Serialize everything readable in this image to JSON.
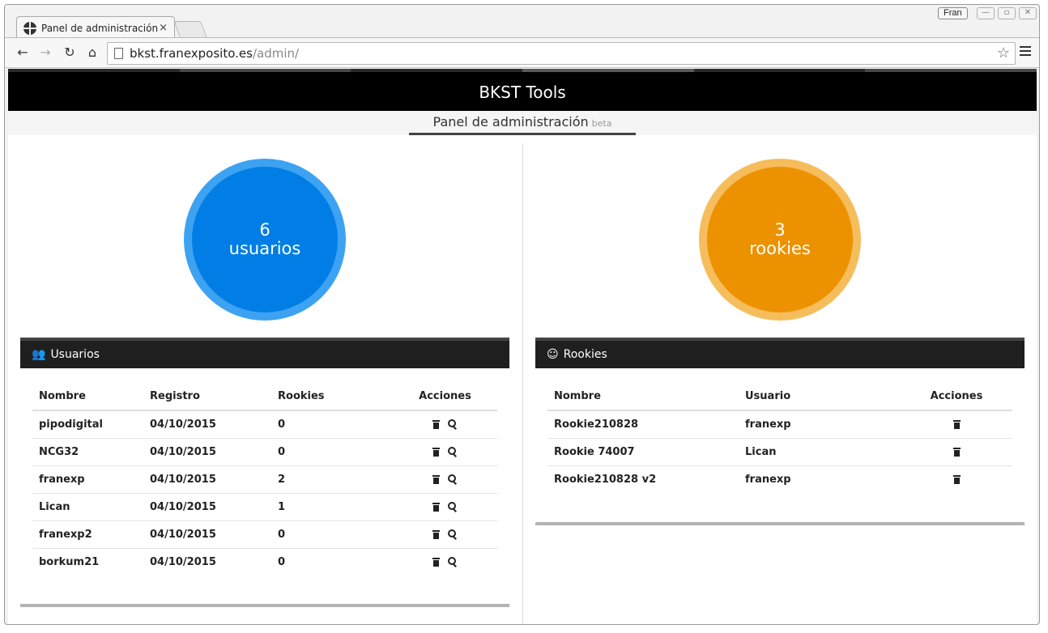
{
  "browser": {
    "tab_title": "Panel de administración",
    "tab_close": "×",
    "profile_name": "Fran",
    "url_host": "bkst.franexposito.es",
    "url_path": "/admin/",
    "back_icon": "←",
    "forward_icon": "→",
    "reload_icon": "↻",
    "home_icon": "⌂",
    "star_icon": "☆",
    "minimize_icon": "—",
    "maximize_icon": "▫",
    "close_icon": "✕"
  },
  "app": {
    "title": "BKST Tools",
    "subtitle": "Panel de administración",
    "subtitle_badge": "beta",
    "loading_colors": [
      "#2b2b2b",
      "#4a4a4a",
      "#2b2b2b",
      "#5a5a5a",
      "#2b2b2b",
      "#4a4a4a"
    ]
  },
  "stats": {
    "users": {
      "count": "6",
      "label": "usuarios",
      "color": "#007ee5"
    },
    "rookies": {
      "count": "3",
      "label": "rookies",
      "color": "#ec9200"
    }
  },
  "users_panel": {
    "title": "Usuarios",
    "icon": "users-icon",
    "columns": [
      "Nombre",
      "Registro",
      "Rookies",
      "Acciones"
    ],
    "rows": [
      {
        "name": "pipodigital",
        "date": "04/10/2015",
        "rookies": "0"
      },
      {
        "name": "NCG32",
        "date": "04/10/2015",
        "rookies": "0"
      },
      {
        "name": "franexp",
        "date": "04/10/2015",
        "rookies": "2"
      },
      {
        "name": "Lican",
        "date": "04/10/2015",
        "rookies": "1"
      },
      {
        "name": "franexp2",
        "date": "04/10/2015",
        "rookies": "0"
      },
      {
        "name": "borkum21",
        "date": "04/10/2015",
        "rookies": "0"
      }
    ]
  },
  "rookies_panel": {
    "title": "Rookies",
    "icon": "smiley-icon",
    "columns": [
      "Nombre",
      "Usuario",
      "Acciones"
    ],
    "rows": [
      {
        "name": "Rookie210828",
        "user": "franexp"
      },
      {
        "name": "Rookie 74007",
        "user": "Lican"
      },
      {
        "name": "Rookie210828 v2",
        "user": "franexp"
      }
    ]
  }
}
